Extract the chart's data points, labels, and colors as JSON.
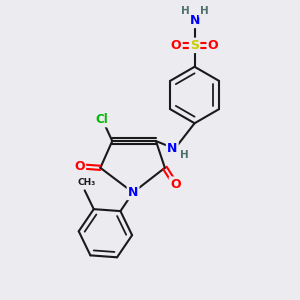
{
  "bg_color": "#ebebf0",
  "bond_color": "#1a1a1a",
  "bond_width": 1.5,
  "atom_colors": {
    "N": "#0000ff",
    "O": "#ff0000",
    "S": "#cccc00",
    "Cl": "#00bb00",
    "H": "#507070",
    "C": "#1a1a1a"
  },
  "font_size_atom": 9.0,
  "font_size_h": 7.5,
  "font_size_cl": 8.5
}
